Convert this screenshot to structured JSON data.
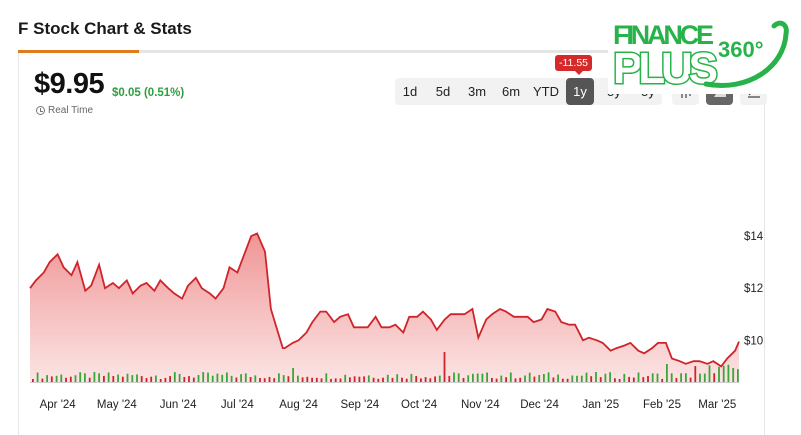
{
  "page": {
    "title": "F Stock Chart & Stats"
  },
  "quote": {
    "price": "$9.95",
    "change": "$0.05 (0.51%)",
    "realtime_label": "Real Time",
    "change_color": "#2f9e3f"
  },
  "ranges": [
    {
      "label": "1d",
      "active": false
    },
    {
      "label": "5d",
      "active": false
    },
    {
      "label": "3m",
      "active": false
    },
    {
      "label": "6m",
      "active": false
    },
    {
      "label": "YTD",
      "active": false
    },
    {
      "label": "1y",
      "active": true
    },
    {
      "label": "5y",
      "active": false
    },
    {
      "label": "5y",
      "active": false
    }
  ],
  "tools": [
    {
      "icon": "candlestick-icon",
      "active": false
    },
    {
      "icon": "area-chart-icon",
      "active": true
    },
    {
      "icon": "draw-chart-icon",
      "active": false
    }
  ],
  "badge": {
    "text": "-11.55"
  },
  "logo": {
    "line1": "FINANCE",
    "line2": "PLUS",
    "suffix": "360°"
  },
  "colors": {
    "line": "#d0242b",
    "area": "#f4a3a3",
    "volume_up": "#3aa63a",
    "volume_down": "#d0242b",
    "accent": "#e07a1f"
  },
  "chart_data": {
    "type": "area",
    "title": "",
    "xlabel": "",
    "ylabel": "",
    "ylim": [
      8.4,
      15.0
    ],
    "y_ticks": [
      "$14",
      "$12",
      "$10"
    ],
    "y_tick_values": [
      14,
      12,
      10
    ],
    "x_ticks": [
      "Apr '24",
      "May '24",
      "Jun '24",
      "Jul '24",
      "Aug '24",
      "Sep '24",
      "Oct '24",
      "Nov '24",
      "Dec '24",
      "Jan '25",
      "Feb '25",
      "Mar '25"
    ],
    "series": [
      {
        "x": [
          "2024-03-18",
          "2024-03-21",
          "2024-03-25",
          "2024-03-28",
          "2024-04-01",
          "2024-04-04",
          "2024-04-08",
          "2024-04-11",
          "2024-04-15",
          "2024-04-18",
          "2024-04-22",
          "2024-04-25",
          "2024-04-29",
          "2024-05-02",
          "2024-05-06",
          "2024-05-09",
          "2024-05-13",
          "2024-05-16",
          "2024-05-20",
          "2024-05-23",
          "2024-05-27",
          "2024-05-30",
          "2024-06-03",
          "2024-06-06",
          "2024-06-10",
          "2024-06-13",
          "2024-06-17",
          "2024-06-20",
          "2024-06-24",
          "2024-06-27",
          "2024-07-01",
          "2024-07-04",
          "2024-07-08",
          "2024-07-11",
          "2024-07-15",
          "2024-07-18",
          "2024-07-22",
          "2024-07-24",
          "2024-07-25",
          "2024-07-29",
          "2024-08-01",
          "2024-08-05",
          "2024-08-08",
          "2024-08-12",
          "2024-08-15",
          "2024-08-19",
          "2024-08-22",
          "2024-08-26",
          "2024-08-29",
          "2024-09-02",
          "2024-09-05",
          "2024-09-09",
          "2024-09-12",
          "2024-09-16",
          "2024-09-19",
          "2024-09-23",
          "2024-09-26",
          "2024-09-30",
          "2024-10-03",
          "2024-10-07",
          "2024-10-10",
          "2024-10-14",
          "2024-10-17",
          "2024-10-21",
          "2024-10-24",
          "2024-10-28",
          "2024-10-31",
          "2024-11-04",
          "2024-11-07",
          "2024-11-11",
          "2024-11-14",
          "2024-11-18",
          "2024-11-21",
          "2024-11-25",
          "2024-11-28",
          "2024-12-02",
          "2024-12-05",
          "2024-12-09",
          "2024-12-12",
          "2024-12-16",
          "2024-12-19",
          "2024-12-23",
          "2024-12-26",
          "2024-12-30",
          "2025-01-02",
          "2025-01-06",
          "2025-01-09",
          "2025-01-13",
          "2025-01-16",
          "2025-01-20",
          "2025-01-23",
          "2025-01-27",
          "2025-01-30",
          "2025-02-03",
          "2025-02-06",
          "2025-02-10",
          "2025-02-13",
          "2025-02-17",
          "2025-02-20",
          "2025-02-24",
          "2025-02-27",
          "2025-03-03",
          "2025-03-06",
          "2025-03-10",
          "2025-03-12"
        ],
        "y": [
          12.0,
          12.3,
          12.6,
          13.0,
          13.3,
          12.8,
          12.5,
          13.0,
          11.9,
          12.1,
          12.9,
          12.0,
          12.2,
          12.0,
          12.3,
          11.8,
          12.1,
          12.2,
          11.9,
          12.3,
          12.0,
          11.8,
          11.6,
          12.1,
          12.4,
          12.0,
          11.8,
          11.6,
          12.0,
          12.8,
          12.6,
          13.2,
          14.0,
          14.1,
          13.4,
          11.2,
          10.2,
          9.7,
          9.7,
          9.9,
          10.0,
          10.3,
          10.7,
          11.1,
          11.1,
          10.7,
          10.9,
          11.0,
          10.5,
          10.5,
          10.5,
          10.9,
          10.5,
          10.5,
          10.6,
          10.3,
          10.9,
          10.9,
          11.1,
          10.8,
          10.4,
          10.8,
          11.0,
          11.0,
          11.0,
          11.2,
          10.1,
          10.8,
          11.0,
          11.2,
          11.1,
          10.9,
          10.9,
          10.9,
          10.7,
          10.8,
          11.2,
          11.1,
          10.7,
          10.6,
          10.6,
          10.0,
          10.1,
          10.0,
          9.9,
          9.6,
          9.7,
          9.8,
          9.9,
          9.6,
          9.5,
          9.7,
          9.9,
          9.9,
          9.3,
          9.2,
          9.1,
          9.2,
          9.2,
          9.1,
          9.2,
          9.0,
          9.3,
          9.6,
          9.95
        ]
      }
    ],
    "volume_note": "volume bars shown below price, green up / red down"
  }
}
